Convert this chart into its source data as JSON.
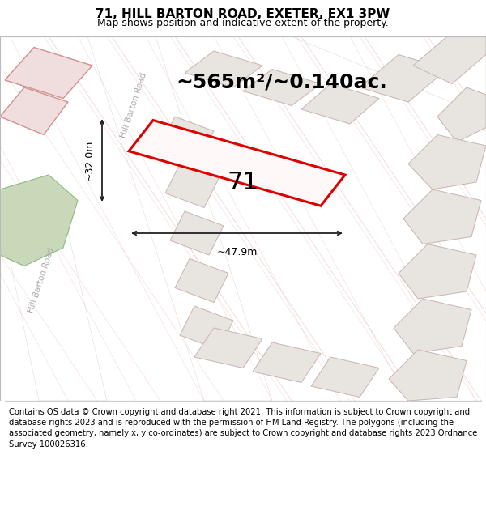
{
  "title_line1": "71, HILL BARTON ROAD, EXETER, EX1 3PW",
  "title_line2": "Map shows position and indicative extent of the property.",
  "area_text": "~565m²/~0.140ac.",
  "label_71": "71",
  "dim_width": "~47.9m",
  "dim_height": "~32.0m",
  "road_label1": "Hill Barton Road",
  "road_label2": "Hill Barton Road",
  "footer_text": "Contains OS data © Crown copyright and database right 2021. This information is subject to Crown copyright and database rights 2023 and is reproduced with the permission of HM Land Registry. The polygons (including the associated geometry, namely x, y co-ordinates) are subject to Crown copyright and database rights 2023 Ordnance Survey 100026316.",
  "map_bg": "#f5f0ee",
  "road_fill": "#ffffff",
  "bld_fill": "#e8e4e0",
  "bld_edge": "#c8b4b0",
  "pink_fill": "#f0dede",
  "pink_edge": "#d09090",
  "highlight_fill": "#fff8f8",
  "highlight_edge": "#dd0000",
  "green_fill": "#c8d8b8",
  "green_edge": "#90b880",
  "dim_color": "#222222",
  "road_label_color": "#aaaaaa",
  "title_fontsize": 11,
  "subtitle_fontsize": 9,
  "area_fontsize": 18,
  "label_fontsize": 22,
  "dim_fontsize": 9,
  "road_fontsize": 7.5,
  "footer_fontsize": 7.2
}
